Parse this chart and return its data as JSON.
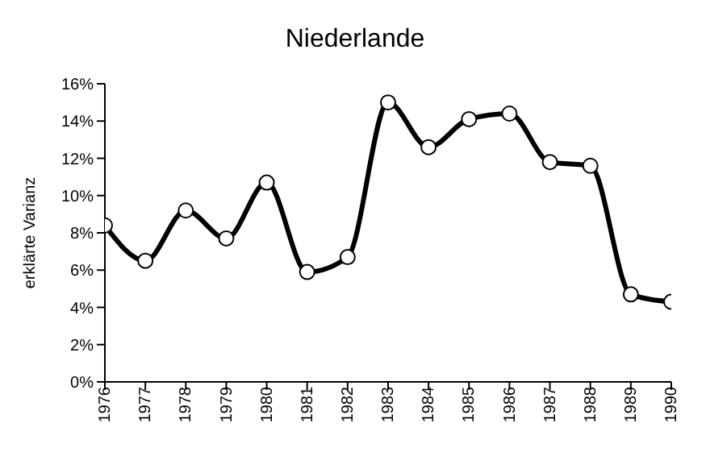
{
  "chart_data": {
    "type": "line",
    "title": "Niederlande",
    "ylabel": "erklärte Varianz",
    "x": [
      1976,
      1977,
      1978,
      1979,
      1980,
      1981,
      1982,
      1983,
      1984,
      1985,
      1986,
      1987,
      1988,
      1989,
      1990
    ],
    "series": [
      {
        "color": "#000000",
        "values": [
          8.4,
          6.5,
          9.2,
          7.7,
          10.7,
          5.9,
          6.7,
          15.0,
          12.6,
          14.1,
          14.4,
          11.8,
          11.6,
          4.7,
          4.3
        ]
      }
    ],
    "xlim": [
      1976,
      1990
    ],
    "xticks": [
      1976,
      1977,
      1978,
      1979,
      1980,
      1981,
      1982,
      1983,
      1984,
      1985,
      1986,
      1987,
      1988,
      1989,
      1990
    ],
    "ylim": [
      0,
      16
    ],
    "yticks": [
      {
        "value": 0,
        "label": "0%"
      },
      {
        "value": 2,
        "label": "2%"
      },
      {
        "value": 4,
        "label": "4%"
      },
      {
        "value": 6,
        "label": "6%"
      },
      {
        "value": 8,
        "label": "8%"
      },
      {
        "value": 10,
        "label": "10%"
      },
      {
        "value": 12,
        "label": "12%"
      },
      {
        "value": 14,
        "label": "14%"
      },
      {
        "value": 16,
        "label": "16%"
      }
    ],
    "grid": false,
    "legend": false,
    "marker": "circle",
    "line_style": "solid"
  }
}
